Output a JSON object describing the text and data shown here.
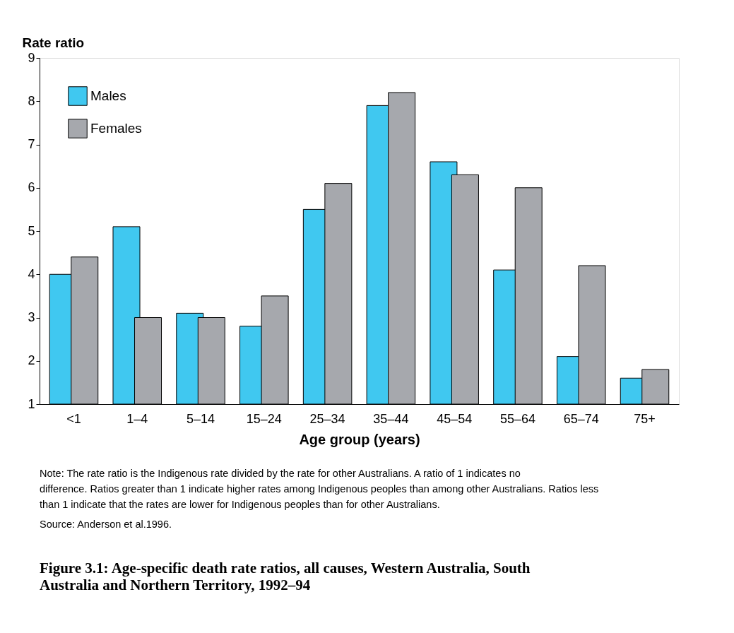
{
  "chart_data": {
    "type": "bar",
    "title": "Figure 3.1: Age-specific death rate ratios, all causes, Western Australia, South Australia and Northern Territory, 1992–94",
    "xlabel": "Age group (years)",
    "ylabel": "Rate ratio",
    "categories": [
      "<1",
      "1–4",
      "5–14",
      "15–24",
      "25–34",
      "35–44",
      "45–54",
      "55–64",
      "65–74",
      "75+"
    ],
    "series": [
      {
        "name": "Males",
        "color": "#40c8f0",
        "values": [
          4.0,
          5.1,
          3.1,
          2.8,
          5.5,
          7.9,
          6.6,
          4.1,
          2.1,
          1.6
        ]
      },
      {
        "name": "Females",
        "color": "#a6a8ad",
        "values": [
          4.4,
          3.0,
          3.0,
          3.5,
          6.1,
          8.2,
          6.3,
          6.0,
          4.2,
          1.8
        ]
      }
    ],
    "ylim": [
      1,
      9
    ],
    "yticks": [
      1,
      2,
      3,
      4,
      5,
      6,
      7,
      8,
      9
    ],
    "grid": false,
    "legend": "top left",
    "annotations": [
      "Note: The rate ratio is the Indigenous rate divided by the rate for other Australians. A ratio of 1 indicates no difference. Ratios greater than 1 indicate higher rates among Indigenous peoples than among other Australians. Ratios less than 1 indicate that the rates are lower for Indigenous peoples than for other Australians.",
      "Source: Anderson et al.1996."
    ]
  }
}
